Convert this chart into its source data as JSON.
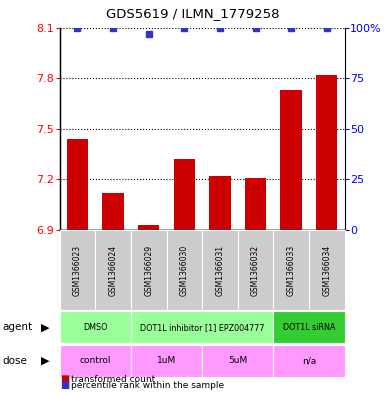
{
  "title": "GDS5619 / ILMN_1779258",
  "samples": [
    "GSM1366023",
    "GSM1366024",
    "GSM1366029",
    "GSM1366030",
    "GSM1366031",
    "GSM1366032",
    "GSM1366033",
    "GSM1366034"
  ],
  "transformed_counts": [
    7.44,
    7.12,
    6.93,
    7.32,
    7.22,
    7.21,
    7.73,
    7.82
  ],
  "percentile_ranks": [
    100,
    100,
    97,
    100,
    100,
    100,
    100,
    100
  ],
  "ylim": [
    6.9,
    8.1
  ],
  "yticks": [
    6.9,
    7.2,
    7.5,
    7.8,
    8.1
  ],
  "right_yticks": [
    0,
    25,
    50,
    75,
    100
  ],
  "right_ylim": [
    0,
    100
  ],
  "bar_color": "#cc0000",
  "dot_color": "#3333cc",
  "bg_color": "#ffffff",
  "agent_groups": [
    {
      "label": "DMSO",
      "start": 0,
      "end": 2,
      "color": "#99ff99"
    },
    {
      "label": "DOT1L inhibitor [1] EPZ004777",
      "start": 2,
      "end": 6,
      "color": "#99ff99"
    },
    {
      "label": "DOT1L siRNA",
      "start": 6,
      "end": 8,
      "color": "#33cc33"
    }
  ],
  "dose_groups": [
    {
      "label": "control",
      "start": 0,
      "end": 2,
      "color": "#ff99ff"
    },
    {
      "label": "1uM",
      "start": 2,
      "end": 4,
      "color": "#ff99ff"
    },
    {
      "label": "5uM",
      "start": 4,
      "end": 6,
      "color": "#ff99ff"
    },
    {
      "label": "n/a",
      "start": 6,
      "end": 8,
      "color": "#ff99ff"
    }
  ],
  "sample_bg_color": "#cccccc",
  "bar_width": 0.6,
  "dot_size": 5
}
